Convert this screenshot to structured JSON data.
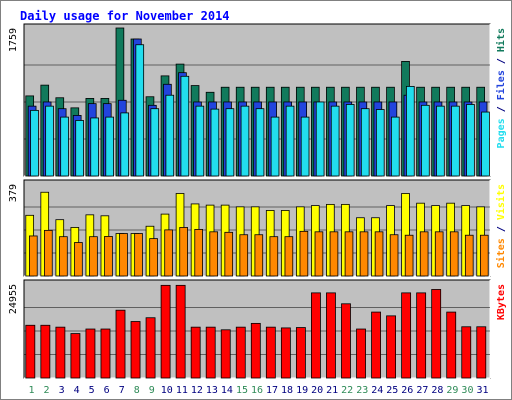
{
  "chart_data": {
    "type": "bar",
    "title": "Daily usage for November 2014",
    "categories": [
      "1",
      "2",
      "3",
      "4",
      "5",
      "6",
      "7",
      "8",
      "9",
      "10",
      "11",
      "12",
      "13",
      "14",
      "15",
      "16",
      "17",
      "18",
      "19",
      "20",
      "21",
      "22",
      "23",
      "24",
      "25",
      "26",
      "27",
      "28",
      "29",
      "30",
      "31"
    ],
    "weekend_days": [
      "1",
      "2",
      "8",
      "9",
      "15",
      "16",
      "22",
      "23",
      "29",
      "30"
    ],
    "colors": {
      "background": "#c0c0c0",
      "title": "#0000ff",
      "weekday_label": "#000080",
      "weekend_label": "#2e8b57",
      "hits": "#117a5c",
      "files": "#2244dd",
      "pages": "#22ddee",
      "visits": "#ffff00",
      "sites": "#ff8800",
      "kbytes": "#ff0000"
    },
    "panels": [
      {
        "id": "hits-files-pages",
        "max_label": "1759",
        "ylim": [
          0,
          1759
        ],
        "ylabel_parts": [
          {
            "text": "Pages",
            "color": "#22ddee"
          },
          {
            "text": " / ",
            "color": "#000080"
          },
          {
            "text": "Files",
            "color": "#2244dd"
          },
          {
            "text": " / ",
            "color": "#000080"
          },
          {
            "text": "Hits",
            "color": "#117a5c"
          }
        ],
        "series": [
          {
            "name": "Hits",
            "color": "#117a5c",
            "values": [
              952,
              1080,
              930,
              810,
              922,
              922,
              1759,
              1628,
              942,
              1190,
              1330,
              1075,
              995,
              1055,
              1055,
              1055,
              1055,
              1055,
              1055,
              1055,
              1055,
              1055,
              1055,
              1055,
              1055,
              1362,
              1055,
              1055,
              1055,
              1055,
              1055
            ]
          },
          {
            "name": "Files",
            "color": "#2244dd",
            "values": [
              830,
              880,
              800,
              720,
              860,
              860,
              900,
              1628,
              840,
              1090,
              1228,
              880,
              880,
              880,
              880,
              880,
              880,
              880,
              880,
              880,
              880,
              880,
              880,
              880,
              880,
              960,
              880,
              880,
              880,
              880,
              880
            ]
          },
          {
            "name": "Pages",
            "color": "#22ddee",
            "values": [
              780,
              830,
              700,
              660,
              690,
              700,
              750,
              1560,
              800,
              960,
              1185,
              830,
              795,
              800,
              830,
              800,
              700,
              830,
              700,
              880,
              830,
              850,
              800,
              790,
              700,
              1065,
              840,
              830,
              830,
              850,
              760
            ]
          }
        ]
      },
      {
        "id": "visits-sites",
        "max_label": "379",
        "ylim": [
          0,
          379
        ],
        "ylabel_parts": [
          {
            "text": "Sites",
            "color": "#ff8800"
          },
          {
            "text": " / ",
            "color": "#000080"
          },
          {
            "text": "Visits",
            "color": "#ffff00"
          }
        ],
        "series": [
          {
            "name": "Visits",
            "color": "#ffff00",
            "values": [
              250,
              345,
              232,
              200,
              252,
              248,
              175,
              175,
              205,
              255,
              340,
              297,
              292,
              292,
              285,
              285,
              270,
              270,
              285,
              290,
              295,
              295,
              240,
              240,
              290,
              340,
              300,
              290,
              300,
              290,
              285
            ]
          },
          {
            "name": "Sites",
            "color": "#ff8800",
            "values": [
              165,
              188,
              162,
              138,
              162,
              163,
              175,
              175,
              154,
              190,
              200,
              192,
              182,
              180,
              170,
              170,
              162,
              162,
              184,
              182,
              182,
              182,
              182,
              182,
              170,
              168,
              182,
              182,
              182,
              168,
              168
            ]
          }
        ]
      },
      {
        "id": "kbytes",
        "max_label": "24955",
        "ylim": [
          0,
          24955
        ],
        "ylabel_parts": [
          {
            "text": "KBytes",
            "color": "#ff0000"
          }
        ],
        "series": [
          {
            "name": "KBytes",
            "color": "#ff0000",
            "values": [
              14000,
              14000,
              13500,
              11800,
              13000,
              13000,
              18000,
              15000,
              16000,
              24600,
              24600,
              13500,
              13500,
              12800,
              13500,
              14500,
              13500,
              13300,
              13400,
              22600,
              22600,
              19700,
              13000,
              17500,
              16500,
              22600,
              22600,
              23500,
              17500,
              13600,
              13600
            ]
          }
        ]
      }
    ]
  }
}
